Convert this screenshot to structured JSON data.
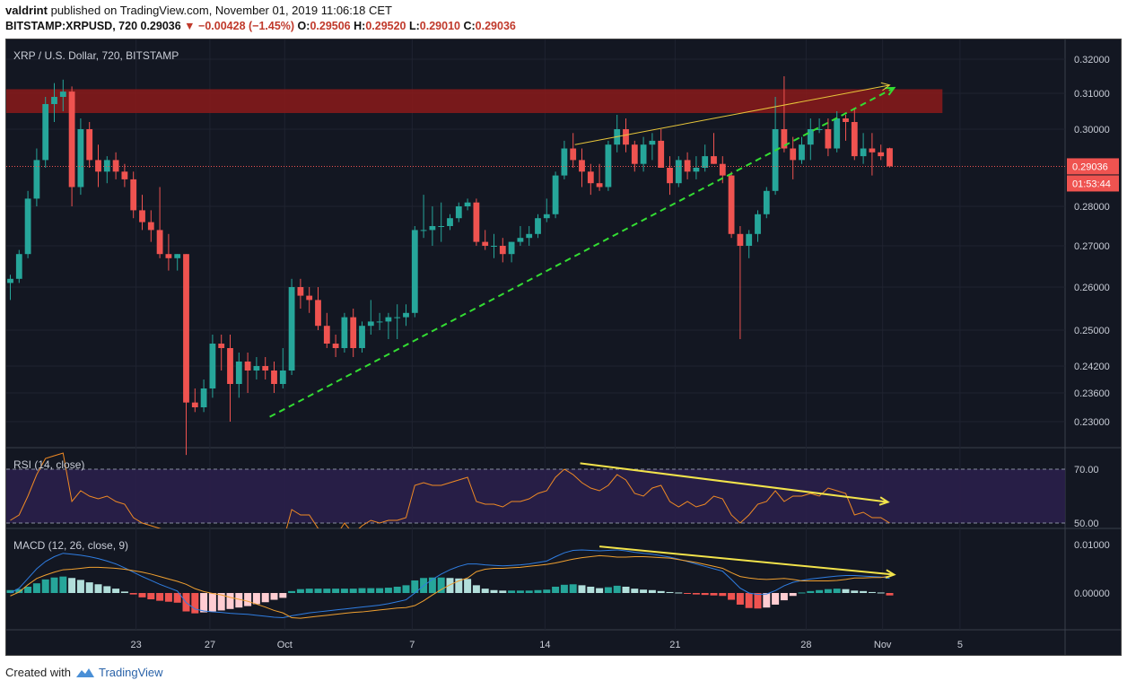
{
  "header": {
    "author": "valdrint",
    "published_text": "published on TradingView.com, November 01, 2019 11:06:18 CET",
    "symbol": "BITSTAMP:XRPUSD, 720",
    "price": "0.29036",
    "change": "−0.00428 (−1.45%)",
    "o_label": "O:",
    "o_value": "0.29506",
    "h_label": "H:",
    "h_value": "0.29520",
    "l_label": "L:",
    "l_value": "0.29010",
    "c_label": "C:",
    "c_value": "0.29036"
  },
  "footer": {
    "created_with": "Created with",
    "brand": "TradingView"
  },
  "colors": {
    "bg": "#131722",
    "up": "#26a69a",
    "down": "#ef5350",
    "resistance": "#8b1a1a",
    "trend": "#33dd33",
    "divergence": "#f2e34b",
    "rsi_line": "#f08a24",
    "macd_line": "#2f7de1",
    "signal_line": "#f0a030"
  },
  "chart_data": [
    {
      "type": "candlestick",
      "title": "XRP / U.S. Dollar, 720, BITSTAMP",
      "x_tick_labels": [
        "23",
        "27",
        "Oct",
        "7",
        "14",
        "21",
        "28",
        "Nov",
        "5"
      ],
      "y_tick_labels": [
        "0.32000",
        "0.31000",
        "0.30000",
        "0.28000",
        "0.27000",
        "0.26000",
        "0.25000",
        "0.24200",
        "0.23600",
        "0.23000"
      ],
      "y_ticks": [
        0.32,
        0.31,
        0.3,
        0.28,
        0.27,
        0.26,
        0.25,
        0.242,
        0.236,
        0.23
      ],
      "last_price_label": "0.29036",
      "countdown_label": "01:53:44",
      "resistance_zone": [
        0.3045,
        0.3112
      ],
      "candles": [
        [
          0.261,
          0.263,
          0.257,
          0.262
        ],
        [
          0.262,
          0.269,
          0.261,
          0.268
        ],
        [
          0.268,
          0.284,
          0.267,
          0.282
        ],
        [
          0.282,
          0.295,
          0.28,
          0.292
        ],
        [
          0.292,
          0.309,
          0.29,
          0.307
        ],
        [
          0.307,
          0.313,
          0.302,
          0.309
        ],
        [
          0.309,
          0.314,
          0.305,
          0.3105
        ],
        [
          0.3105,
          0.312,
          0.28,
          0.285
        ],
        [
          0.285,
          0.303,
          0.283,
          0.3
        ],
        [
          0.3,
          0.302,
          0.29,
          0.292
        ],
        [
          0.292,
          0.296,
          0.285,
          0.289
        ],
        [
          0.289,
          0.293,
          0.286,
          0.292
        ],
        [
          0.292,
          0.294,
          0.287,
          0.289
        ],
        [
          0.289,
          0.291,
          0.285,
          0.287
        ],
        [
          0.287,
          0.289,
          0.277,
          0.279
        ],
        [
          0.279,
          0.283,
          0.274,
          0.276
        ],
        [
          0.276,
          0.279,
          0.271,
          0.274
        ],
        [
          0.274,
          0.285,
          0.267,
          0.268
        ],
        [
          0.268,
          0.273,
          0.264,
          0.267
        ],
        [
          0.267,
          0.268,
          0.264,
          0.268
        ],
        [
          0.268,
          0.268,
          0.223,
          0.234
        ],
        [
          0.234,
          0.237,
          0.232,
          0.233
        ],
        [
          0.233,
          0.239,
          0.232,
          0.237
        ],
        [
          0.237,
          0.249,
          0.235,
          0.247
        ],
        [
          0.247,
          0.249,
          0.241,
          0.246
        ],
        [
          0.246,
          0.249,
          0.23,
          0.238
        ],
        [
          0.238,
          0.245,
          0.235,
          0.243
        ],
        [
          0.243,
          0.245,
          0.236,
          0.241
        ],
        [
          0.241,
          0.244,
          0.239,
          0.242
        ],
        [
          0.242,
          0.244,
          0.239,
          0.241
        ],
        [
          0.241,
          0.243,
          0.236,
          0.238
        ],
        [
          0.238,
          0.246,
          0.237,
          0.241
        ],
        [
          0.241,
          0.262,
          0.24,
          0.26
        ],
        [
          0.26,
          0.262,
          0.255,
          0.258
        ],
        [
          0.258,
          0.26,
          0.254,
          0.257
        ],
        [
          0.257,
          0.26,
          0.25,
          0.251
        ],
        [
          0.251,
          0.254,
          0.246,
          0.247
        ],
        [
          0.247,
          0.249,
          0.244,
          0.246
        ],
        [
          0.246,
          0.254,
          0.245,
          0.253
        ],
        [
          0.253,
          0.255,
          0.244,
          0.246
        ],
        [
          0.246,
          0.252,
          0.245,
          0.251
        ],
        [
          0.251,
          0.257,
          0.249,
          0.252
        ],
        [
          0.252,
          0.254,
          0.25,
          0.252
        ],
        [
          0.252,
          0.254,
          0.248,
          0.253
        ],
        [
          0.253,
          0.256,
          0.248,
          0.253
        ],
        [
          0.253,
          0.256,
          0.251,
          0.254
        ],
        [
          0.254,
          0.275,
          0.253,
          0.274
        ],
        [
          0.274,
          0.283,
          0.272,
          0.274
        ],
        [
          0.274,
          0.28,
          0.27,
          0.275
        ],
        [
          0.275,
          0.281,
          0.271,
          0.275
        ],
        [
          0.275,
          0.278,
          0.274,
          0.277
        ],
        [
          0.277,
          0.281,
          0.276,
          0.28
        ],
        [
          0.28,
          0.282,
          0.279,
          0.281
        ],
        [
          0.281,
          0.282,
          0.27,
          0.271
        ],
        [
          0.271,
          0.274,
          0.269,
          0.27
        ],
        [
          0.27,
          0.273,
          0.267,
          0.27
        ],
        [
          0.27,
          0.272,
          0.266,
          0.268
        ],
        [
          0.268,
          0.271,
          0.266,
          0.271
        ],
        [
          0.271,
          0.275,
          0.27,
          0.272
        ],
        [
          0.272,
          0.275,
          0.27,
          0.273
        ],
        [
          0.273,
          0.278,
          0.272,
          0.277
        ],
        [
          0.277,
          0.282,
          0.276,
          0.278
        ],
        [
          0.278,
          0.289,
          0.277,
          0.288
        ],
        [
          0.288,
          0.297,
          0.287,
          0.295
        ],
        [
          0.295,
          0.299,
          0.29,
          0.292
        ],
        [
          0.292,
          0.295,
          0.285,
          0.289
        ],
        [
          0.289,
          0.291,
          0.283,
          0.286
        ],
        [
          0.286,
          0.291,
          0.284,
          0.285
        ],
        [
          0.285,
          0.297,
          0.284,
          0.296
        ],
        [
          0.296,
          0.304,
          0.294,
          0.3
        ],
        [
          0.3,
          0.303,
          0.294,
          0.296
        ],
        [
          0.296,
          0.297,
          0.289,
          0.291
        ],
        [
          0.291,
          0.298,
          0.289,
          0.296
        ],
        [
          0.296,
          0.299,
          0.292,
          0.297
        ],
        [
          0.297,
          0.3,
          0.29,
          0.29
        ],
        [
          0.29,
          0.293,
          0.283,
          0.286
        ],
        [
          0.286,
          0.293,
          0.285,
          0.292
        ],
        [
          0.292,
          0.294,
          0.287,
          0.289
        ],
        [
          0.289,
          0.293,
          0.287,
          0.29
        ],
        [
          0.29,
          0.296,
          0.289,
          0.293
        ],
        [
          0.293,
          0.299,
          0.291,
          0.291
        ],
        [
          0.291,
          0.293,
          0.286,
          0.288
        ],
        [
          0.288,
          0.289,
          0.272,
          0.273
        ],
        [
          0.273,
          0.275,
          0.248,
          0.27
        ],
        [
          0.27,
          0.274,
          0.267,
          0.273
        ],
        [
          0.273,
          0.279,
          0.271,
          0.278
        ],
        [
          0.278,
          0.285,
          0.277,
          0.284
        ],
        [
          0.284,
          0.309,
          0.283,
          0.3
        ],
        [
          0.3,
          0.315,
          0.294,
          0.295
        ],
        [
          0.295,
          0.298,
          0.287,
          0.292
        ],
        [
          0.292,
          0.298,
          0.291,
          0.296
        ],
        [
          0.296,
          0.303,
          0.292,
          0.3
        ],
        [
          0.3,
          0.303,
          0.299,
          0.3
        ],
        [
          0.3,
          0.303,
          0.293,
          0.295
        ],
        [
          0.295,
          0.305,
          0.294,
          0.303
        ],
        [
          0.303,
          0.304,
          0.297,
          0.302
        ],
        [
          0.302,
          0.306,
          0.292,
          0.293
        ],
        [
          0.293,
          0.299,
          0.291,
          0.295
        ],
        [
          0.295,
          0.299,
          0.288,
          0.294
        ],
        [
          0.294,
          0.296,
          0.292,
          0.293
        ],
        [
          0.29506,
          0.2952,
          0.2901,
          0.29036
        ]
      ],
      "annotations": [
        {
          "label": "ascending support",
          "x": [
            29.5,
            100.5
          ],
          "y": [
            0.231,
            0.3116
          ]
        },
        {
          "label": "price highs",
          "x": [
            64.2,
            100.0
          ],
          "y": [
            0.296,
            0.3124
          ]
        }
      ]
    },
    {
      "type": "line",
      "title": "RSI (14, close)",
      "y_tick_labels": [
        "70.00",
        "50.00"
      ],
      "y_ticks": [
        70,
        50
      ],
      "band": [
        50,
        70
      ],
      "values": [
        51,
        53,
        60,
        68,
        74,
        75,
        76,
        58,
        62,
        60,
        59,
        60,
        58,
        57,
        52,
        50,
        49,
        48,
        47,
        47,
        34,
        35,
        37,
        43,
        42,
        40,
        42,
        41,
        42,
        41,
        40,
        43,
        55,
        53,
        53,
        48,
        46,
        45,
        50,
        46,
        49,
        51,
        50,
        51,
        51,
        52,
        64,
        65,
        64,
        64,
        65,
        66,
        67,
        58,
        57,
        57,
        56,
        58,
        58,
        59,
        61,
        62,
        67,
        70,
        68,
        65,
        63,
        62,
        64,
        68,
        66,
        61,
        60,
        63,
        64,
        58,
        56,
        58,
        56,
        57,
        60,
        59,
        53,
        50,
        53,
        57,
        58,
        62,
        58,
        60,
        60,
        61,
        60,
        63,
        62,
        61,
        53,
        54,
        52,
        52,
        50
      ],
      "annotations": [
        {
          "label": "rsi divergence",
          "x": [
            64.8,
            99.8
          ],
          "y": [
            72.2,
            57.8
          ]
        }
      ]
    },
    {
      "type": "bar+line",
      "title": "MACD (12, 26, close, 9)",
      "y_tick_labels": [
        "0.01000",
        "0.00000"
      ],
      "y_ticks": [
        0.01,
        0.0
      ],
      "histogram": [
        0.0006,
        0.0008,
        0.0013,
        0.002,
        0.0028,
        0.0032,
        0.0034,
        0.0031,
        0.0027,
        0.0022,
        0.0018,
        0.0014,
        0.0009,
        0.0003,
        -0.0003,
        -0.0009,
        -0.0013,
        -0.0016,
        -0.0018,
        -0.002,
        -0.0038,
        -0.0042,
        -0.004,
        -0.0038,
        -0.0036,
        -0.0033,
        -0.003,
        -0.0027,
        -0.0023,
        -0.0019,
        -0.0014,
        -0.001,
        0.0004,
        0.0008,
        0.0009,
        0.0009,
        0.0009,
        0.0009,
        0.0009,
        0.0009,
        0.001,
        0.001,
        0.001,
        0.0011,
        0.0013,
        0.0016,
        0.0026,
        0.0031,
        0.0032,
        0.0032,
        0.0031,
        0.003,
        0.0029,
        0.0016,
        0.0009,
        0.0006,
        0.0005,
        0.0005,
        0.0005,
        0.0005,
        0.0006,
        0.0007,
        0.0013,
        0.0017,
        0.0018,
        0.0016,
        0.0013,
        0.001,
        0.0012,
        0.0015,
        0.0013,
        0.0009,
        0.0007,
        0.0006,
        0.0004,
        0.0002,
        0.0001,
        -0.0001,
        -0.0003,
        -0.0004,
        -0.0005,
        -0.0006,
        -0.0014,
        -0.0024,
        -0.0031,
        -0.0032,
        -0.003,
        -0.0024,
        -0.0015,
        -0.0006,
        0.0001,
        0.0004,
        0.0006,
        0.0008,
        0.0009,
        0.0008,
        0.0005,
        0.0004,
        0.0002,
        0.0001,
        -0.0005
      ],
      "macd_line": [
        0.0,
        0.001,
        0.003,
        0.005,
        0.0065,
        0.0075,
        0.0082,
        0.008,
        0.0078,
        0.0075,
        0.0071,
        0.0066,
        0.006,
        0.0052,
        0.0043,
        0.0034,
        0.0026,
        0.0018,
        0.0011,
        0.0004,
        -0.002,
        -0.0033,
        -0.0037,
        -0.0039,
        -0.004,
        -0.0042,
        -0.0043,
        -0.0044,
        -0.0046,
        -0.0048,
        -0.005,
        -0.0051,
        -0.0047,
        -0.0044,
        -0.0041,
        -0.0039,
        -0.0037,
        -0.0035,
        -0.0033,
        -0.0031,
        -0.0029,
        -0.0027,
        -0.0025,
        -0.0022,
        -0.0018,
        -0.0014,
        0.0,
        0.0015,
        0.0028,
        0.0039,
        0.0048,
        0.0055,
        0.006,
        0.006,
        0.0058,
        0.0057,
        0.0056,
        0.0057,
        0.0058,
        0.006,
        0.0063,
        0.0066,
        0.0075,
        0.0083,
        0.0088,
        0.0089,
        0.0088,
        0.0087,
        0.0088,
        0.0089,
        0.0087,
        0.0084,
        0.0082,
        0.008,
        0.0077,
        0.0074,
        0.007,
        0.0065,
        0.006,
        0.0055,
        0.005,
        0.0045,
        0.0028,
        0.001,
        0.0,
        -0.0003,
        -0.0002,
        0.0005,
        0.0015,
        0.0022,
        0.0026,
        0.0029,
        0.0031,
        0.0033,
        0.0035,
        0.0036,
        0.0036,
        0.0035,
        0.0034,
        0.0033,
        0.003
      ],
      "signal_line": [
        -0.0006,
        0.0002,
        0.0017,
        0.003,
        0.0037,
        0.0043,
        0.0048,
        0.0049,
        0.0051,
        0.0053,
        0.0053,
        0.0052,
        0.0051,
        0.0049,
        0.0046,
        0.0043,
        0.0039,
        0.0034,
        0.0029,
        0.0024,
        0.0018,
        0.0009,
        0.0003,
        -0.0001,
        -0.0004,
        -0.0009,
        -0.0013,
        -0.0017,
        -0.0023,
        -0.0029,
        -0.0036,
        -0.0041,
        -0.0051,
        -0.0052,
        -0.005,
        -0.0048,
        -0.0046,
        -0.0044,
        -0.0042,
        -0.004,
        -0.0039,
        -0.0037,
        -0.0035,
        -0.0033,
        -0.0031,
        -0.003,
        -0.0026,
        -0.0016,
        -0.0004,
        0.0007,
        0.0017,
        0.0025,
        0.0031,
        0.0044,
        0.0049,
        0.0051,
        0.0051,
        0.0052,
        0.0053,
        0.0055,
        0.0057,
        0.0059,
        0.0062,
        0.0066,
        0.007,
        0.0073,
        0.0075,
        0.0077,
        0.0076,
        0.0074,
        0.0074,
        0.0075,
        0.0075,
        0.0074,
        0.0073,
        0.0072,
        0.0069,
        0.0066,
        0.0063,
        0.0059,
        0.0055,
        0.0051,
        0.0042,
        0.0034,
        0.0031,
        0.0029,
        0.0028,
        0.0029,
        0.003,
        0.0028,
        0.0025,
        0.0025,
        0.0025,
        0.0025,
        0.0026,
        0.0028,
        0.0031,
        0.0031,
        0.0032,
        0.0032,
        0.0035
      ],
      "annotations": [
        {
          "label": "macd divergence",
          "x": [
            67.0,
            100.5
          ],
          "y": [
            0.0096,
            0.0038
          ]
        }
      ]
    }
  ]
}
